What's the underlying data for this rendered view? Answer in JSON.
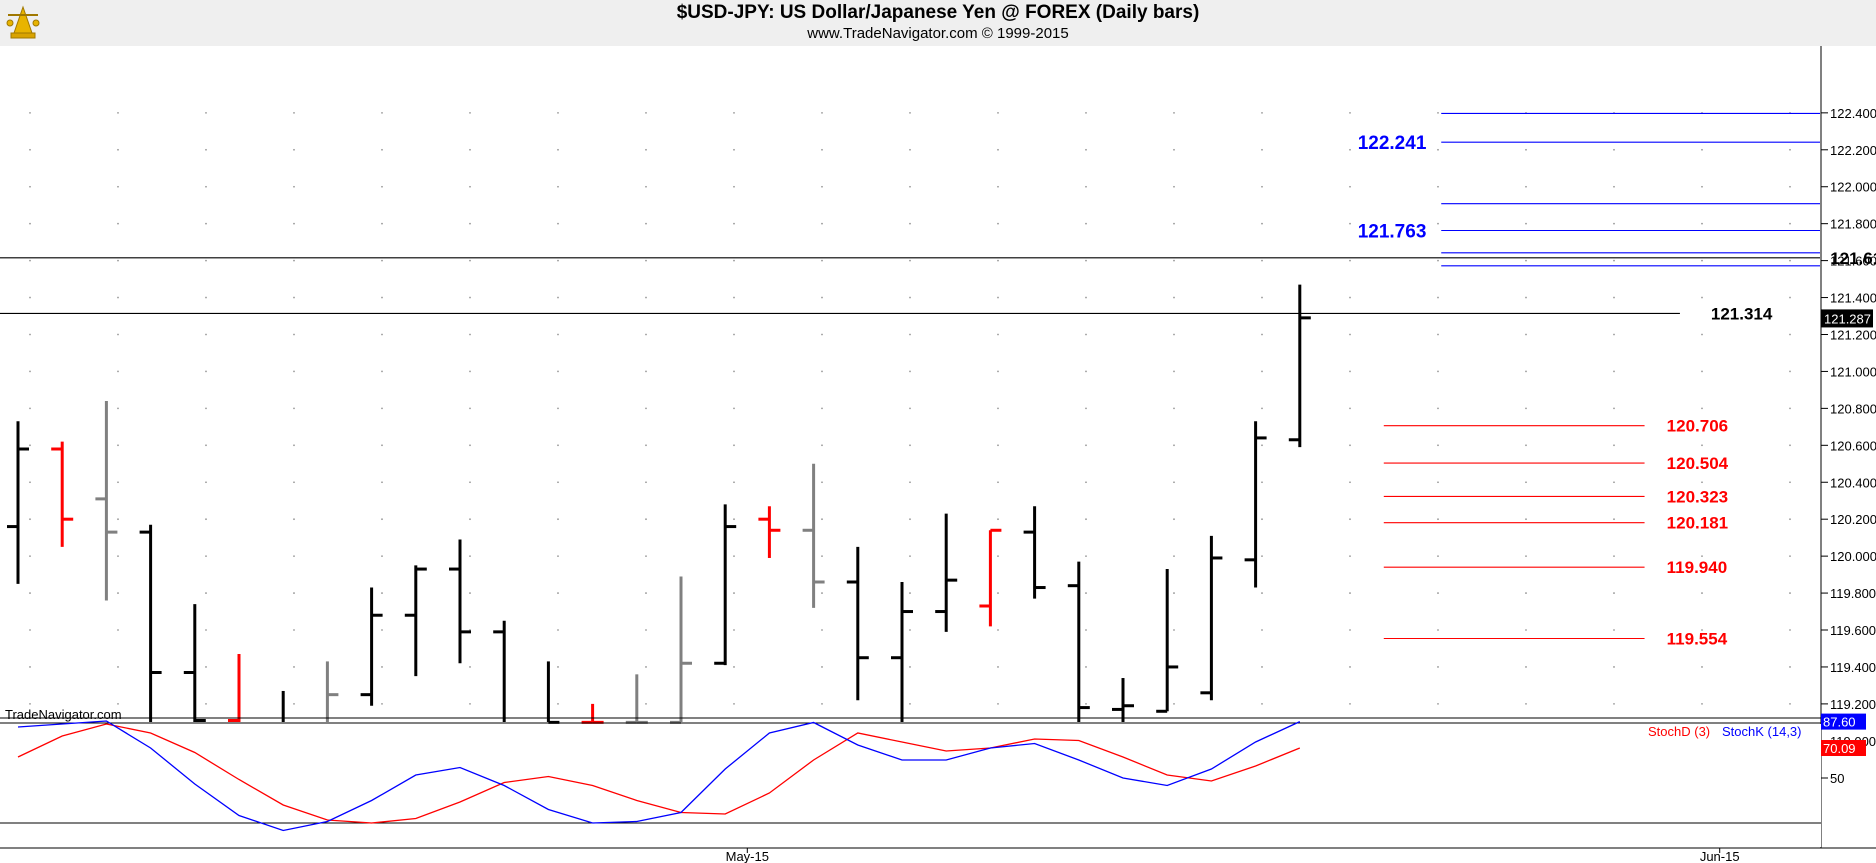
{
  "header": {
    "title": "$USD-JPY:  US Dollar/Japanese Yen @ FOREX  (Daily bars)",
    "subtitle": "www.TradeNavigator.com © 1999-2015"
  },
  "watermark": "TradeNavigator.com",
  "chart_data": [
    {
      "type": "ohlc",
      "ylim": [
        118.9,
        122.55
      ],
      "y_ticks": [
        "119.000",
        "119.200",
        "119.400",
        "119.600",
        "119.800",
        "120.000",
        "120.200",
        "120.400",
        "120.600",
        "120.800",
        "121.000",
        "121.200",
        "121.400",
        "121.600",
        "121.800",
        "122.000",
        "122.200",
        "122.400"
      ],
      "y_tick_values": [
        119.0,
        119.2,
        119.4,
        119.6,
        119.8,
        120.0,
        120.2,
        120.4,
        120.6,
        120.8,
        121.0,
        121.2,
        121.4,
        121.6,
        121.8,
        122.0,
        122.2,
        122.4
      ],
      "x_ticks": [
        {
          "label": "May-15",
          "bar": 16.5
        },
        {
          "label": "Jun-15",
          "bar": 38.5
        }
      ],
      "last_price": "121.287",
      "last_price_value": 121.287,
      "bars": [
        {
          "o": 120.16,
          "h": 120.73,
          "l": 119.85,
          "c": 120.58,
          "color": "#000000"
        },
        {
          "o": 120.58,
          "h": 120.62,
          "l": 120.05,
          "c": 120.2,
          "color": "#ff0000"
        },
        {
          "o": 120.31,
          "h": 120.84,
          "l": 119.76,
          "c": 120.13,
          "color": "#808080"
        },
        {
          "o": 120.13,
          "h": 120.17,
          "l": 119.07,
          "c": 119.37,
          "color": "#000000"
        },
        {
          "o": 119.37,
          "h": 119.74,
          "l": 118.88,
          "c": 119.11,
          "color": "#000000"
        },
        {
          "o": 119.11,
          "h": 119.47,
          "l": 118.88,
          "c": 119.0,
          "color": "#ff0000"
        },
        {
          "o": 119.0,
          "h": 119.27,
          "l": 118.88,
          "c": 118.9,
          "color": "#000000"
        },
        {
          "o": 119.0,
          "h": 119.43,
          "l": 118.88,
          "c": 119.25,
          "color": "#808080"
        },
        {
          "o": 119.25,
          "h": 119.83,
          "l": 119.19,
          "c": 119.68,
          "color": "#000000"
        },
        {
          "o": 119.68,
          "h": 119.95,
          "l": 119.35,
          "c": 119.93,
          "color": "#000000"
        },
        {
          "o": 119.93,
          "h": 120.09,
          "l": 119.42,
          "c": 119.59,
          "color": "#000000"
        },
        {
          "o": 119.59,
          "h": 119.65,
          "l": 118.88,
          "c": 118.97,
          "color": "#000000"
        },
        {
          "o": 118.97,
          "h": 119.43,
          "l": 118.88,
          "c": 119.1,
          "color": "#000000"
        },
        {
          "o": 119.1,
          "h": 119.2,
          "l": 118.88,
          "c": 119.1,
          "color": "#ff0000"
        },
        {
          "o": 119.1,
          "h": 119.36,
          "l": 118.88,
          "c": 119.1,
          "color": "#808080"
        },
        {
          "o": 119.1,
          "h": 119.89,
          "l": 118.88,
          "c": 119.42,
          "color": "#808080"
        },
        {
          "o": 119.42,
          "h": 120.28,
          "l": 119.41,
          "c": 120.16,
          "color": "#000000"
        },
        {
          "o": 120.2,
          "h": 120.27,
          "l": 119.99,
          "c": 120.14,
          "color": "#ff0000"
        },
        {
          "o": 120.14,
          "h": 120.5,
          "l": 119.72,
          "c": 119.86,
          "color": "#808080"
        },
        {
          "o": 119.86,
          "h": 120.05,
          "l": 119.22,
          "c": 119.45,
          "color": "#000000"
        },
        {
          "o": 119.45,
          "h": 119.86,
          "l": 119.06,
          "c": 119.7,
          "color": "#000000"
        },
        {
          "o": 119.7,
          "h": 120.23,
          "l": 119.59,
          "c": 119.87,
          "color": "#000000"
        },
        {
          "o": 119.73,
          "h": 120.14,
          "l": 119.62,
          "c": 120.14,
          "color": "#ff0000"
        },
        {
          "o": 120.13,
          "h": 120.27,
          "l": 119.77,
          "c": 119.83,
          "color": "#000000"
        },
        {
          "o": 119.84,
          "h": 119.97,
          "l": 119.04,
          "c": 119.18,
          "color": "#000000"
        },
        {
          "o": 119.17,
          "h": 119.34,
          "l": 118.88,
          "c": 119.19,
          "color": "#000000"
        },
        {
          "o": 119.16,
          "h": 119.93,
          "l": 119.16,
          "c": 119.4,
          "color": "#000000"
        },
        {
          "o": 119.26,
          "h": 120.11,
          "l": 119.22,
          "c": 119.99,
          "color": "#000000"
        },
        {
          "o": 119.98,
          "h": 120.73,
          "l": 119.83,
          "c": 120.64,
          "color": "#000000"
        },
        {
          "o": 120.63,
          "h": 121.47,
          "l": 120.59,
          "c": 121.29,
          "color": "#000000"
        }
      ],
      "price_levels": [
        {
          "value": 122.397,
          "label": "122.397",
          "color": "#0000ff",
          "x0": 32.2,
          "x1": 47.8,
          "label_side": "right",
          "label_at": 48.3
        },
        {
          "value": 122.241,
          "label": "122.241",
          "color": "#0000ff",
          "x0": 32.2,
          "x1": 47.8,
          "label_side": "left",
          "label_at": 32.0
        },
        {
          "value": 121.908,
          "label": "121.908",
          "color": "#0000ff",
          "x0": 32.2,
          "x1": 47.8,
          "label_side": "right",
          "label_at": 48.3
        },
        {
          "value": 121.763,
          "label": "121.763",
          "color": "#0000ff",
          "x0": 32.2,
          "x1": 47.8,
          "label_side": "left",
          "label_at": 32.0
        },
        {
          "value": 121.642,
          "label": "121.642",
          "color": "#0000ff",
          "x0": 32.2,
          "x1": 47.8,
          "label_side": "right",
          "label_at": 48.3
        },
        {
          "value": 121.572,
          "label": "121.572",
          "color": "#0000ff",
          "x0": 32.2,
          "x1": 47.8,
          "label_side": "right",
          "label_at": 48.3
        },
        {
          "value": 121.615,
          "label": "121.615",
          "color": "#000000",
          "x0": -0.6,
          "x1": 51.2,
          "label_side": "right",
          "label_at": 41.0
        },
        {
          "value": 121.314,
          "label": "121.314",
          "color": "#000000",
          "x0": -0.6,
          "x1": 37.6,
          "label_side": "right",
          "label_at": 38.3
        },
        {
          "value": 120.706,
          "label": "120.706",
          "color": "#ff0000",
          "x0": 30.9,
          "x1": 36.8,
          "label_side": "right",
          "label_at": 37.3
        },
        {
          "value": 120.504,
          "label": "120.504",
          "color": "#ff0000",
          "x0": 30.9,
          "x1": 36.8,
          "label_side": "right",
          "label_at": 37.3
        },
        {
          "value": 120.323,
          "label": "120.323",
          "color": "#ff0000",
          "x0": 30.9,
          "x1": 36.8,
          "label_side": "right",
          "label_at": 37.3
        },
        {
          "value": 120.181,
          "label": "120.181",
          "color": "#ff0000",
          "x0": 30.9,
          "x1": 36.8,
          "label_side": "right",
          "label_at": 37.3
        },
        {
          "value": 119.94,
          "label": "119.940",
          "color": "#ff0000",
          "x0": 30.9,
          "x1": 36.8,
          "label_side": "right",
          "label_at": 37.3
        },
        {
          "value": 119.554,
          "label": "119.554",
          "color": "#ff0000",
          "x0": 30.9,
          "x1": 36.8,
          "label_side": "right",
          "label_at": 37.3
        }
      ]
    },
    {
      "type": "line",
      "ylim": [
        12,
        100
      ],
      "y_ticks": [
        "50"
      ],
      "y_tick_values": [
        50
      ],
      "reference_lines": [
        90,
        20
      ],
      "series": [
        {
          "name": "StochD (3)",
          "color": "#ff0000",
          "badge": "70.09",
          "values": [
            64,
            78,
            86,
            80,
            67,
            49,
            32,
            22,
            20,
            23,
            34,
            47,
            51,
            45,
            35,
            27,
            26,
            40,
            62,
            80,
            74,
            68,
            70,
            76,
            75,
            64,
            52,
            48,
            58,
            70
          ]
        },
        {
          "name": "StochK (14,3)",
          "color": "#0000ff",
          "badge": "87.60",
          "values": [
            84,
            86,
            88,
            70,
            46,
            25,
            15,
            21,
            35,
            52,
            57,
            45,
            29,
            20,
            21,
            27,
            56,
            80,
            87,
            72,
            62,
            62,
            70,
            73,
            62,
            50,
            45,
            56,
            74,
            87.6
          ]
        }
      ]
    }
  ]
}
